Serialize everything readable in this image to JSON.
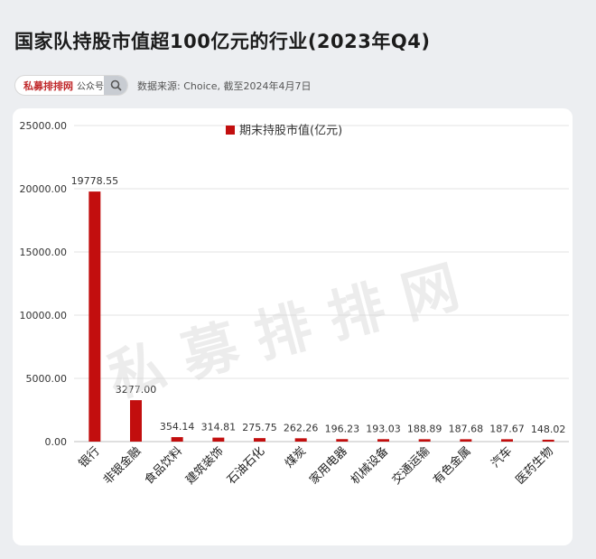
{
  "header": {
    "title": "国家队持股市值超100亿元的行业(2023年Q4)",
    "account_name": "私募排排网",
    "account_type": "公众号",
    "source_note": "数据来源: Choice, 截至2024年4月7日"
  },
  "watermark": "私募排排网",
  "colors": {
    "bar": "#c20e0e",
    "axis_text": "#333333",
    "grid": "#e3e3e3"
  },
  "chart_data": {
    "type": "bar",
    "title": "",
    "xlabel": "",
    "ylabel": "",
    "legend": {
      "label": "期末持股市值(亿元)",
      "position": "top-center"
    },
    "ylim": [
      0,
      25000
    ],
    "yticks": [
      "0.00",
      "5000.00",
      "10000.00",
      "15000.00",
      "20000.00",
      "25000.00"
    ],
    "grid": true,
    "categories": [
      "银行",
      "非银金融",
      "食品饮料",
      "建筑装饰",
      "石油石化",
      "煤炭",
      "家用电器",
      "机械设备",
      "交通运输",
      "有色金属",
      "汽车",
      "医药生物"
    ],
    "values": [
      19778.55,
      3277.0,
      354.14,
      314.81,
      275.75,
      262.26,
      196.23,
      193.03,
      188.89,
      187.68,
      187.67,
      148.02
    ],
    "value_labels": [
      "19778.55",
      "3277.00",
      "354.14",
      "314.81",
      "275.75",
      "262.26",
      "196.23",
      "193.03",
      "188.89",
      "187.68",
      "187.67",
      "148.02"
    ]
  }
}
